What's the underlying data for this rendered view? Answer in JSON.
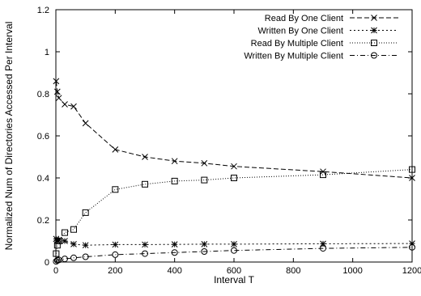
{
  "chart_data": {
    "type": "line",
    "title": "",
    "xlabel": "Interval T",
    "ylabel": "Normalized Num of Directories Accessed Per Interval",
    "xlim": [
      0,
      1200
    ],
    "ylim": [
      0,
      1.2
    ],
    "xticks": [
      0,
      200,
      400,
      600,
      800,
      1000,
      1200
    ],
    "yticks": [
      0,
      0.2,
      0.4,
      0.6,
      0.8,
      1,
      1.2
    ],
    "xtick_labels": [
      "0",
      "200",
      "400",
      "600",
      "800",
      "1000",
      "1200"
    ],
    "ytick_labels": [
      "0",
      "0.2",
      "0.4",
      "0.6",
      "0.8",
      "1",
      "1.2"
    ],
    "grid": false,
    "legend_position": "top-right",
    "series": [
      {
        "name": "Read By One Client",
        "marker": "x",
        "dash": "long-dash",
        "x": [
          1,
          5,
          10,
          30,
          60,
          100,
          200,
          300,
          400,
          500,
          600,
          900,
          1200
        ],
        "y": [
          0.86,
          0.81,
          0.78,
          0.75,
          0.74,
          0.66,
          0.535,
          0.5,
          0.48,
          0.47,
          0.455,
          0.43,
          0.4
        ]
      },
      {
        "name": "Written By One Client",
        "marker": "asterisk",
        "dash": "dotted",
        "x": [
          1,
          5,
          10,
          30,
          60,
          100,
          200,
          300,
          400,
          500,
          600,
          900,
          1200
        ],
        "y": [
          0.11,
          0.1,
          0.105,
          0.1,
          0.085,
          0.08,
          0.083,
          0.083,
          0.084,
          0.085,
          0.085,
          0.087,
          0.088
        ]
      },
      {
        "name": "Read By Multiple Client",
        "marker": "square",
        "dash": "fine-dotted",
        "x": [
          1,
          5,
          10,
          30,
          60,
          100,
          200,
          300,
          400,
          500,
          600,
          900,
          1200
        ],
        "y": [
          0.04,
          0.08,
          0.1,
          0.14,
          0.155,
          0.235,
          0.345,
          0.37,
          0.385,
          0.39,
          0.4,
          0.415,
          0.44
        ]
      },
      {
        "name": "Written By Multiple Client",
        "marker": "circle",
        "dash": "dash-dot",
        "x": [
          1,
          5,
          10,
          30,
          60,
          100,
          200,
          300,
          400,
          500,
          600,
          900,
          1200
        ],
        "y": [
          0.003,
          0.008,
          0.01,
          0.015,
          0.02,
          0.025,
          0.035,
          0.04,
          0.045,
          0.05,
          0.055,
          0.065,
          0.07
        ]
      }
    ]
  }
}
